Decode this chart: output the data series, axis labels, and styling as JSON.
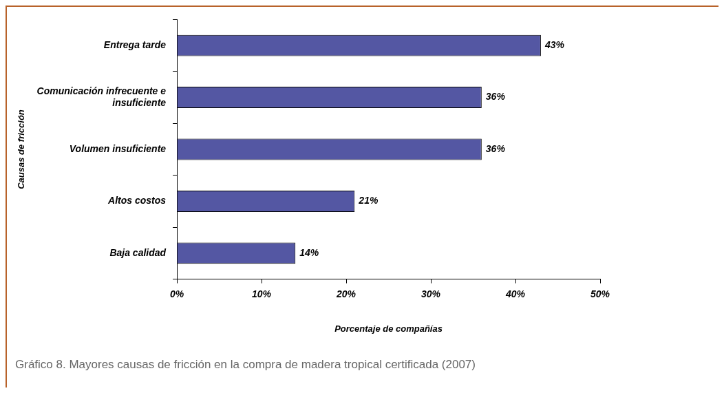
{
  "chart_data": {
    "type": "bar",
    "orientation": "horizontal",
    "categories": [
      "Entrega tarde",
      "Comunicación infrecuente e insuficiente",
      "Volumen insuficiente",
      "Altos costos",
      "Baja calidad"
    ],
    "values": [
      43,
      36,
      36,
      21,
      14
    ],
    "value_labels": [
      "43%",
      "36%",
      "36%",
      "21%",
      "14%"
    ],
    "color": "#5457a3",
    "xlim": [
      0,
      50
    ],
    "xticks": [
      {
        "value": 0,
        "label": "0%"
      },
      {
        "value": 10,
        "label": "10%"
      },
      {
        "value": 20,
        "label": "20%"
      },
      {
        "value": 30,
        "label": "30%"
      },
      {
        "value": 40,
        "label": "40%"
      },
      {
        "value": 50,
        "label": "50%"
      }
    ],
    "xlabel": "Porcentaje de compañías",
    "ylabel": "Causas de fricción",
    "legend": false,
    "annotations": [
      "Gráfico 8. Mayores causas de fricción en la compra de madera tropical certificada (2007)"
    ]
  }
}
